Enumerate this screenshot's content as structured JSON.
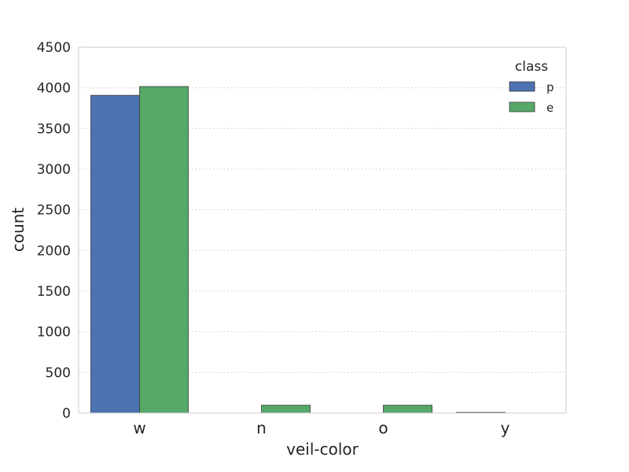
{
  "chart_data": {
    "type": "bar",
    "title": "",
    "xlabel": "veil-color",
    "ylabel": "count",
    "categories": [
      "w",
      "n",
      "o",
      "y"
    ],
    "series": [
      {
        "name": "p",
        "color": "#4c72b0",
        "values": [
          3908,
          0,
          0,
          8
        ]
      },
      {
        "name": "e",
        "color": "#55a868",
        "values": [
          4016,
          96,
          96,
          0
        ]
      }
    ],
    "ylim": [
      0,
      4500
    ],
    "yticks": [
      0,
      500,
      1000,
      1500,
      2000,
      2500,
      3000,
      3500,
      4000,
      4500
    ],
    "grid": {
      "y": true,
      "x": false,
      "style": "dotted"
    },
    "legend": {
      "title": "class",
      "placement": "top-right"
    }
  }
}
